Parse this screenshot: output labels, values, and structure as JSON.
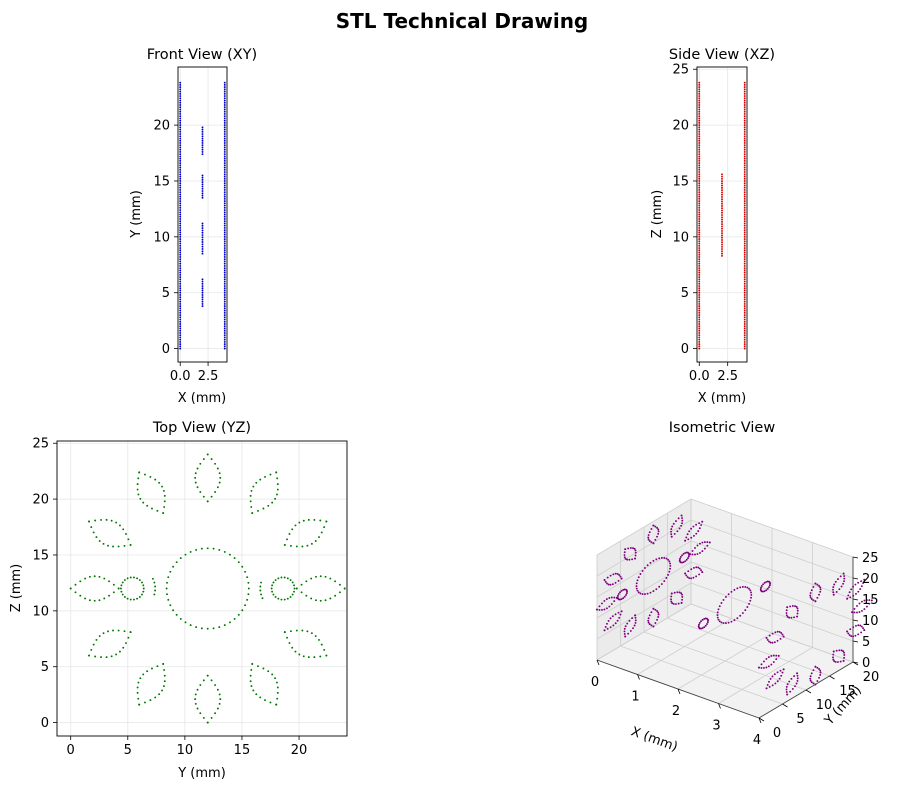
{
  "title": "STL Technical Drawing",
  "chart_data": [
    {
      "type": "scatter",
      "panel": "front",
      "title": "Front View (XY)",
      "xlabel": "X (mm)",
      "ylabel": "Y (mm)",
      "xlim": [
        -0.2,
        4.2
      ],
      "ylim": [
        -1.2,
        25.2
      ],
      "xticks": [
        "0.0",
        "2.5"
      ],
      "xtick_values": [
        0,
        2.5
      ],
      "yticks": [
        "0",
        "5",
        "10",
        "15",
        "20"
      ],
      "ytick_values": [
        0,
        5,
        10,
        15,
        20
      ],
      "grid": true,
      "color": "#0000cc",
      "series": [
        {
          "x": 0,
          "y_ranges": [
            [
              0,
              23.8
            ]
          ]
        },
        {
          "x": 4,
          "y_ranges": [
            [
              0,
              23.8
            ]
          ]
        },
        {
          "x": 2,
          "y_ranges": [
            [
              3.8,
              6.2
            ],
            [
              8.5,
              11.2
            ],
            [
              13.5,
              15.5
            ],
            [
              17.4,
              19.8
            ]
          ]
        }
      ]
    },
    {
      "type": "scatter",
      "panel": "side",
      "title": "Side View (XZ)",
      "xlabel": "X (mm)",
      "ylabel": "Z (mm)",
      "xlim": [
        -0.2,
        4.2
      ],
      "ylim": [
        -1.2,
        25.2
      ],
      "xticks": [
        "0.0",
        "2.5"
      ],
      "xtick_values": [
        0,
        2.5
      ],
      "yticks": [
        "0",
        "5",
        "10",
        "15",
        "20",
        "25"
      ],
      "ytick_values": [
        0,
        5,
        10,
        15,
        20,
        25
      ],
      "grid": true,
      "color": "#dd0000",
      "series": [
        {
          "x": 0,
          "y_ranges": [
            [
              0,
              23.8
            ]
          ]
        },
        {
          "x": 4,
          "y_ranges": [
            [
              0,
              23.8
            ]
          ]
        },
        {
          "x": 2,
          "y_ranges": [
            [
              8.3,
              15.6
            ]
          ]
        }
      ]
    },
    {
      "type": "scatter",
      "panel": "top",
      "title": "Top View (YZ)",
      "xlabel": "Y (mm)",
      "ylabel": "Z (mm)",
      "xlim": [
        -1.2,
        24.2
      ],
      "ylim": [
        -1.2,
        25.2
      ],
      "xticks": [
        "0",
        "5",
        "10",
        "15",
        "20"
      ],
      "xtick_values": [
        0,
        5,
        10,
        15,
        20
      ],
      "yticks": [
        "0",
        "5",
        "10",
        "15",
        "20",
        "25"
      ],
      "ytick_values": [
        0,
        5,
        10,
        15,
        20,
        25
      ],
      "grid": true,
      "color": "#007700",
      "gear_center": [
        12,
        12
      ],
      "center_circle": {
        "center": [
          12,
          12
        ],
        "radius": 3.6
      },
      "small_circles": [
        {
          "center": [
            5.4,
            12
          ],
          "radius": 1.0
        },
        {
          "center": [
            18.6,
            12
          ],
          "radius": 1.0
        }
      ],
      "arcs": [
        {
          "center": [
            5.4,
            12
          ],
          "radius": 2.0
        },
        {
          "center": [
            18.6,
            12
          ],
          "radius": 2.0
        }
      ],
      "petal_count": 12,
      "petal_inner_radius": 7.8,
      "petal_outer_radius": 12.0,
      "petal_half_width": 1.1
    },
    {
      "type": "scatter3d",
      "panel": "iso",
      "title": "Isometric View",
      "xlabel": "X (mm)",
      "ylabel": "Y (mm)",
      "zlabel": "",
      "xlim": [
        0,
        4
      ],
      "ylim": [
        0,
        20
      ],
      "zlim": [
        0,
        25
      ],
      "xticks": [
        "0",
        "1",
        "2",
        "3",
        "4"
      ],
      "xtick_values": [
        0,
        1,
        2,
        3,
        4
      ],
      "yticks": [
        "0",
        "5",
        "10",
        "15",
        "20"
      ],
      "ytick_values": [
        0,
        5,
        10,
        15,
        20
      ],
      "zticks": [
        "0",
        "5",
        "10",
        "15",
        "20",
        "25"
      ],
      "ztick_values": [
        0,
        5,
        10,
        15,
        20,
        25
      ],
      "grid": true,
      "color": "#800080"
    }
  ]
}
